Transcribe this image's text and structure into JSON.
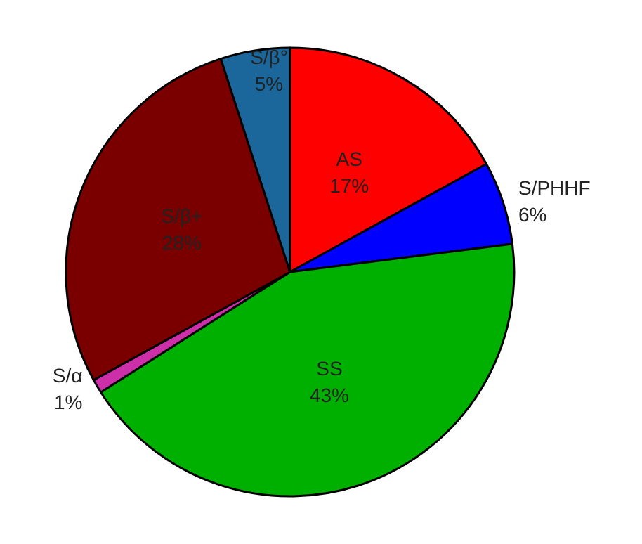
{
  "chart_data": {
    "type": "pie",
    "categories": [
      "AS",
      "S/PHHF",
      "SS",
      "S/α",
      "S/β+",
      "S/β°"
    ],
    "values": [
      17,
      6,
      43,
      1,
      28,
      5
    ],
    "colors": [
      "#ff0000",
      "#0000ff",
      "#00b000",
      "#cc2fa8",
      "#7a0000",
      "#1b679b"
    ],
    "value_labels": [
      "17%",
      "6%",
      "43%",
      "1%",
      "28%",
      "5%"
    ],
    "legend": false
  }
}
